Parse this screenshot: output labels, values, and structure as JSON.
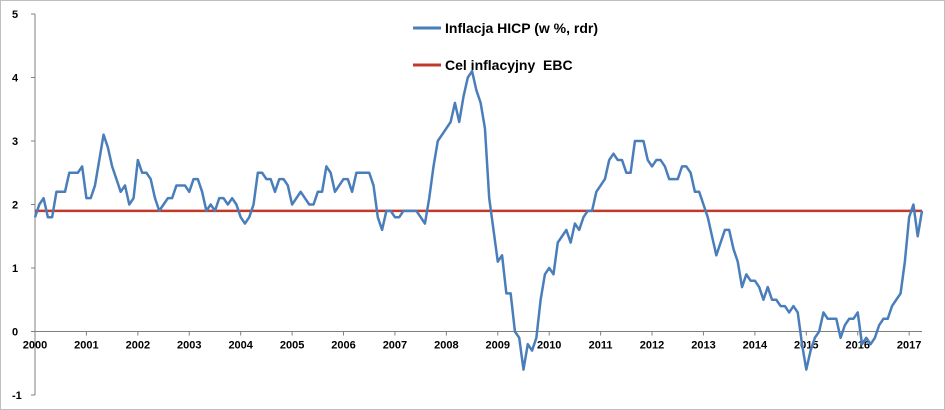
{
  "chart_data": {
    "type": "line",
    "title": "",
    "xlabel": "",
    "ylabel": "",
    "xlim": [
      2000,
      2017.25
    ],
    "ylim": [
      -1,
      5
    ],
    "y_ticks": [
      -1,
      0,
      1,
      2,
      3,
      4,
      5
    ],
    "x_ticks": [
      "2000",
      "2001",
      "2002",
      "2003",
      "2004",
      "2005",
      "2006",
      "2007",
      "2008",
      "2009",
      "2010",
      "2011",
      "2012",
      "2013",
      "2014",
      "2015",
      "2016",
      "2017"
    ],
    "grid": false,
    "legend_position": "top-center",
    "colors": {
      "hicp": "#4a7ebb",
      "target": "#c0392b"
    },
    "series": [
      {
        "name": "Inflacja HICP (w %, rdr)",
        "x_start": 2000.0,
        "x_step_months": 1,
        "values": [
          1.8,
          2.0,
          2.1,
          1.8,
          1.8,
          2.2,
          2.2,
          2.2,
          2.5,
          2.5,
          2.5,
          2.6,
          2.1,
          2.1,
          2.3,
          2.7,
          3.1,
          2.9,
          2.6,
          2.4,
          2.2,
          2.3,
          2.0,
          2.1,
          2.7,
          2.5,
          2.5,
          2.4,
          2.1,
          1.9,
          2.0,
          2.1,
          2.1,
          2.3,
          2.3,
          2.3,
          2.2,
          2.4,
          2.4,
          2.2,
          1.9,
          2.0,
          1.9,
          2.1,
          2.1,
          2.0,
          2.1,
          2.0,
          1.8,
          1.7,
          1.8,
          2.0,
          2.5,
          2.5,
          2.4,
          2.4,
          2.2,
          2.4,
          2.4,
          2.3,
          2.0,
          2.1,
          2.2,
          2.1,
          2.0,
          2.0,
          2.2,
          2.2,
          2.6,
          2.5,
          2.2,
          2.3,
          2.4,
          2.4,
          2.2,
          2.5,
          2.5,
          2.5,
          2.5,
          2.3,
          1.8,
          1.6,
          1.9,
          1.9,
          1.8,
          1.8,
          1.9,
          1.9,
          1.9,
          1.9,
          1.8,
          1.7,
          2.1,
          2.6,
          3.0,
          3.1,
          3.2,
          3.3,
          3.6,
          3.3,
          3.7,
          4.0,
          4.1,
          3.8,
          3.6,
          3.2,
          2.1,
          1.6,
          1.1,
          1.2,
          0.6,
          0.6,
          0.0,
          -0.1,
          -0.6,
          -0.2,
          -0.3,
          -0.1,
          0.5,
          0.9,
          1.0,
          0.9,
          1.4,
          1.5,
          1.6,
          1.4,
          1.7,
          1.6,
          1.8,
          1.9,
          1.9,
          2.2,
          2.3,
          2.4,
          2.7,
          2.8,
          2.7,
          2.7,
          2.5,
          2.5,
          3.0,
          3.0,
          3.0,
          2.7,
          2.6,
          2.7,
          2.7,
          2.6,
          2.4,
          2.4,
          2.4,
          2.6,
          2.6,
          2.5,
          2.2,
          2.2,
          2.0,
          1.8,
          1.5,
          1.2,
          1.4,
          1.6,
          1.6,
          1.3,
          1.1,
          0.7,
          0.9,
          0.8,
          0.8,
          0.7,
          0.5,
          0.7,
          0.5,
          0.5,
          0.4,
          0.4,
          0.3,
          0.4,
          0.3,
          -0.2,
          -0.6,
          -0.3,
          -0.1,
          0.0,
          0.3,
          0.2,
          0.2,
          0.2,
          -0.1,
          0.1,
          0.2,
          0.2,
          0.3,
          -0.2,
          -0.1,
          -0.2,
          -0.1,
          0.1,
          0.2,
          0.2,
          0.4,
          0.5,
          0.6,
          1.1,
          1.8,
          2.0,
          1.5,
          1.9
        ]
      },
      {
        "name": "Cel inflacyjny  EBC",
        "x": [
          2000,
          2017.25
        ],
        "values": [
          1.9,
          1.9
        ]
      }
    ]
  }
}
